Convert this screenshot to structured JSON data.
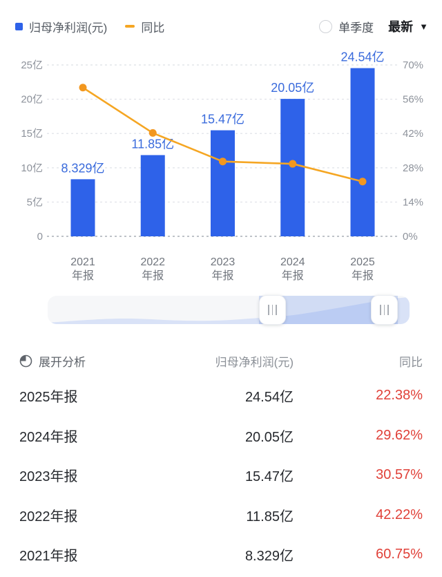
{
  "header": {
    "legend": [
      {
        "label": "归母净利润(元)",
        "color": "#2E62E9",
        "swatch": "square"
      },
      {
        "label": "同比",
        "color": "#F5A623",
        "swatch": "dash"
      }
    ],
    "radio_label": "单季度",
    "dropdown_label": "最新",
    "dropdown_caret": "▼"
  },
  "chart_data": {
    "type": "bar",
    "categories": [
      "2021年报",
      "2022年报",
      "2023年报",
      "2024年报",
      "2025年报"
    ],
    "category_lines": [
      [
        "2021",
        "年报"
      ],
      [
        "2022",
        "年报"
      ],
      [
        "2023",
        "年报"
      ],
      [
        "2024",
        "年报"
      ],
      [
        "2025",
        "年报"
      ]
    ],
    "series": [
      {
        "name": "归母净利润(元)",
        "type": "bar",
        "unit": "亿",
        "values": [
          8.329,
          11.85,
          15.47,
          20.05,
          24.54
        ],
        "labels": [
          "8.329亿",
          "11.85亿",
          "15.47亿",
          "20.05亿",
          "24.54亿"
        ],
        "color": "#2E62E9"
      },
      {
        "name": "同比",
        "type": "line",
        "unit": "%",
        "values": [
          60.75,
          42.22,
          30.57,
          29.62,
          22.38
        ],
        "color": "#F5A623"
      }
    ],
    "left_axis": {
      "label": "归母净利润(元)",
      "max": 25,
      "min": 0,
      "ticks": [
        {
          "label": "25亿",
          "value": 25
        },
        {
          "label": "20亿",
          "value": 20
        },
        {
          "label": "15亿",
          "value": 15
        },
        {
          "label": "10亿",
          "value": 10
        },
        {
          "label": "5亿",
          "value": 5
        },
        {
          "label": "0",
          "value": 0
        }
      ]
    },
    "right_axis": {
      "label": "同比",
      "max": 70,
      "min": 0,
      "ticks": [
        {
          "label": "70%",
          "value": 70
        },
        {
          "label": "56%",
          "value": 56
        },
        {
          "label": "42%",
          "value": 42
        },
        {
          "label": "28%",
          "value": 28
        },
        {
          "label": "14%",
          "value": 14
        },
        {
          "label": "0%",
          "value": 0
        }
      ]
    },
    "grid": true,
    "legend_position": "top-left",
    "title": ""
  },
  "scrollbar": {
    "left_handle_icon": "|||",
    "right_handle_icon": "|||"
  },
  "table": {
    "expand_label": "展开分析",
    "columns": [
      "归母净利润(元)",
      "同比"
    ],
    "rows": [
      {
        "period": "2025年报",
        "value": "24.54亿",
        "yoy": "22.38%"
      },
      {
        "period": "2024年报",
        "value": "20.05亿",
        "yoy": "29.62%"
      },
      {
        "period": "2023年报",
        "value": "15.47亿",
        "yoy": "30.57%"
      },
      {
        "period": "2022年报",
        "value": "11.85亿",
        "yoy": "42.22%"
      },
      {
        "period": "2021年报",
        "value": "8.329亿",
        "yoy": "60.75%"
      }
    ]
  },
  "colors": {
    "bar": "#2E62E9",
    "bar_value_label": "#3A6BDC",
    "line": "#F5A623",
    "line_point": "#F2971F",
    "grid_line": "#e2e5ea",
    "zero_line": "#a9aeb6",
    "axis_tick_label": "#8d929b",
    "x_axis_label": "#70757d",
    "yoy_negative_red": "#E04038",
    "slider_area_fill": "#d9e2f7",
    "slider_selected_overlay": "rgba(100,140,230,0.25)"
  }
}
